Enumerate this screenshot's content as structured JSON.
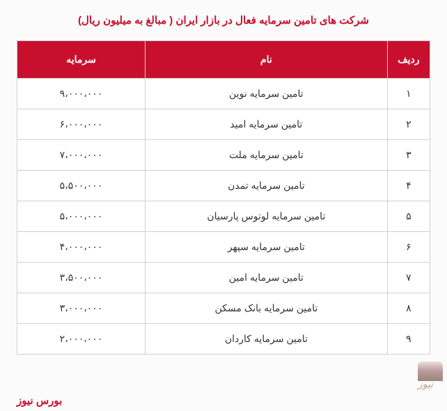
{
  "title": "شرکت های تامین سرمایه فعال در بازار ایران ( مبالغ به میلیون ریال)",
  "caption": "بورس نیوز",
  "table": {
    "header": {
      "index": "ردیف",
      "name": "نام",
      "capital": "سرمایه"
    },
    "rows": [
      {
        "index": "۱",
        "name": "تامین سرمایه نوین",
        "capital": "۹،۰۰۰،۰۰۰"
      },
      {
        "index": "۲",
        "name": "تامین سرمایه امید",
        "capital": "۶،۰۰۰،۰۰۰"
      },
      {
        "index": "۳",
        "name": "تامین سرمایه ملت",
        "capital": "۷،۰۰۰،۰۰۰"
      },
      {
        "index": "۴",
        "name": "تامین سرمایه تمدن",
        "capital": "۵،۵۰۰،۰۰۰"
      },
      {
        "index": "۵",
        "name": "تامین سرمایه لوتوس پارسیان",
        "capital": "۵،۰۰۰،۰۰۰"
      },
      {
        "index": "۶",
        "name": "تامین سرمایه سپهر",
        "capital": "۴،۰۰۰،۰۰۰"
      },
      {
        "index": "۷",
        "name": "تامین سرمایه امین",
        "capital": "۳،۵۰۰،۰۰۰"
      },
      {
        "index": "۸",
        "name": "تامین سرمایه بانک مسکن",
        "capital": "۳،۰۰۰،۰۰۰"
      },
      {
        "index": "۹",
        "name": "تامین سرمایه کاردان",
        "capital": "۲،۰۰۰،۰۰۰"
      }
    ]
  },
  "style": {
    "brand_color": "#c8102e",
    "header_bg": "#c8102e",
    "header_text_color": "#ffffff",
    "row_bg": "#ffffff",
    "row_text_color": "#333333",
    "border_color": "#d0d0d0",
    "page_bg": "#fbfbfb",
    "title_fontsize": 15,
    "header_fontsize": 14,
    "cell_fontsize": 14,
    "col_widths": {
      "index": 60,
      "name": 340,
      "capital": 180
    }
  },
  "watermark": {
    "label": "نیوز"
  }
}
